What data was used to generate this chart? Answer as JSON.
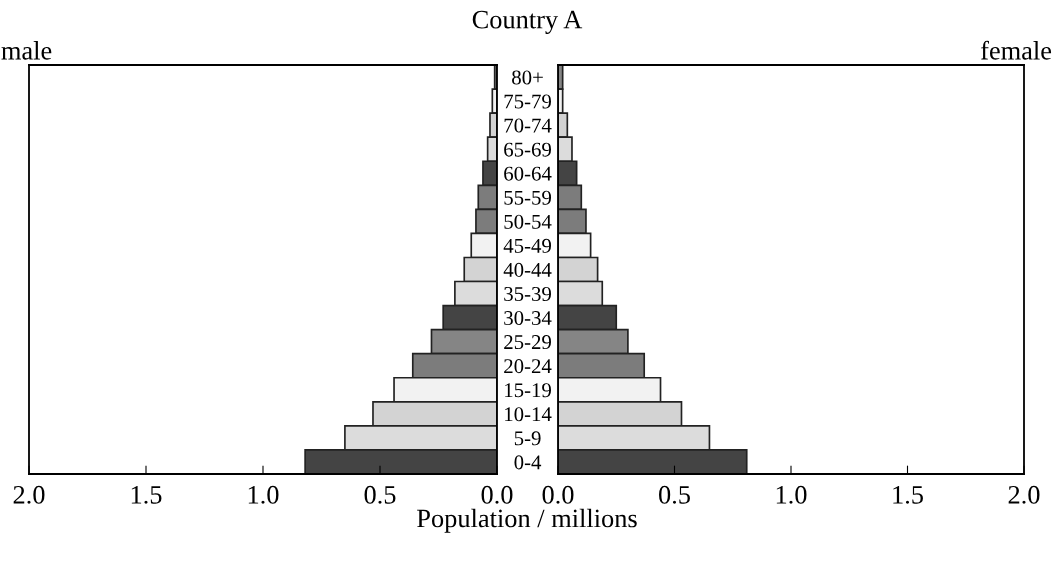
{
  "chart_data": [
    {
      "type": "bar",
      "orientation": "horizontal",
      "title": "male",
      "annotations": [
        "Country A"
      ],
      "categories": [
        "80+",
        "75-79",
        "70-74",
        "65-69",
        "60-64",
        "55-59",
        "50-54",
        "45-49",
        "40-44",
        "35-39",
        "30-34",
        "25-29",
        "20-24",
        "15-19",
        "10-14",
        "5-9",
        "0-4"
      ],
      "values": [
        0.01,
        0.02,
        0.03,
        0.04,
        0.06,
        0.08,
        0.09,
        0.11,
        0.14,
        0.18,
        0.23,
        0.28,
        0.36,
        0.44,
        0.53,
        0.65,
        0.82
      ],
      "colors": [
        "#858585",
        "#f2f2f2",
        "#d3d3d3",
        "#dcdcdc",
        "#444444",
        "#7c7c7c",
        "#7c7c7c",
        "#f2f2f2",
        "#d3d3d3",
        "#dcdcdc",
        "#444444",
        "#858585",
        "#7c7c7c",
        "#f2f2f2",
        "#d3d3d3",
        "#dcdcdc",
        "#444444"
      ],
      "xlim": [
        2.0,
        0.0
      ],
      "xticks": [
        {
          "value": 2.0,
          "label": "2.0"
        },
        {
          "value": 1.5,
          "label": "1.5"
        },
        {
          "value": 1.0,
          "label": "1.0"
        },
        {
          "value": 0.5,
          "label": "0.5"
        },
        {
          "value": 0.0,
          "label": "0.0"
        }
      ],
      "xlabel": null
    },
    {
      "type": "bar",
      "orientation": "horizontal",
      "title": "female",
      "xlabel": "Population / millions",
      "categories": [
        null,
        null,
        null,
        null,
        null,
        null,
        null,
        null,
        null,
        null,
        null,
        null,
        null,
        null,
        null,
        null,
        null
      ],
      "values": [
        0.02,
        0.02,
        0.04,
        0.06,
        0.08,
        0.1,
        0.12,
        0.14,
        0.17,
        0.19,
        0.25,
        0.3,
        0.37,
        0.44,
        0.53,
        0.65,
        0.81
      ],
      "colors": [
        "#858585",
        "#f2f2f2",
        "#d3d3d3",
        "#dcdcdc",
        "#444444",
        "#7c7c7c",
        "#7c7c7c",
        "#f2f2f2",
        "#d3d3d3",
        "#dcdcdc",
        "#444444",
        "#858585",
        "#7c7c7c",
        "#f2f2f2",
        "#d3d3d3",
        "#dcdcdc",
        "#444444"
      ],
      "xlim": [
        0.0,
        2.0
      ],
      "xticks": [
        {
          "value": 0.0,
          "label": "0.0"
        },
        {
          "value": 0.5,
          "label": "0.5"
        },
        {
          "value": 1.0,
          "label": "1.0"
        },
        {
          "value": 1.5,
          "label": "1.5"
        },
        {
          "value": 2.0,
          "label": "2.0"
        }
      ],
      "tick_labels": "x"
    }
  ]
}
